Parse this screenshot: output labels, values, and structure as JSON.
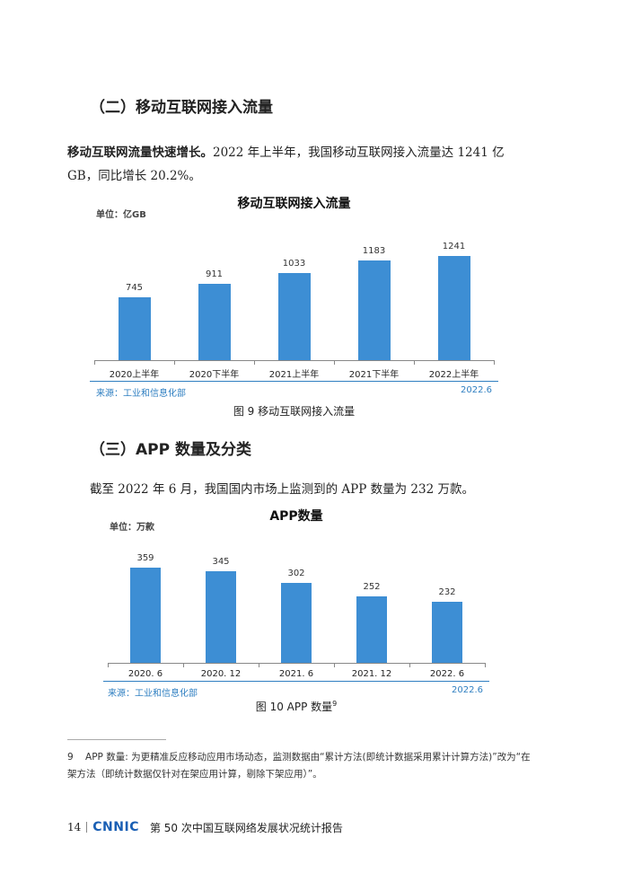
{
  "section1": {
    "heading": "（二）移动互联网接入流量",
    "para_bold": "移动互联网流量快速增长。",
    "para_rest": "2022 年上半年，我国移动互联网接入流量达 1241 亿 GB，同比增长 20.2%。"
  },
  "chart1": {
    "title": "移动互联网接入流量",
    "unit": "单位：亿GB",
    "source": "来源：工业和信息化部",
    "date": "2022.6",
    "caption": "图 9  移动互联网接入流量"
  },
  "section2": {
    "heading": "（三）APP 数量及分类",
    "para": "截至 2022 年 6 月，我国国内市场上监测到的 APP 数量为 232 万款。"
  },
  "chart2": {
    "title": "APP数量",
    "unit": "单位：万款",
    "source": "来源：工业和信息化部",
    "date": "2022.6",
    "caption": "图 10  APP 数量",
    "caption_sup": "9"
  },
  "chart_data": [
    {
      "type": "bar",
      "title": "移动互联网接入流量",
      "ylabel": "单位：亿GB",
      "categories": [
        "2020上半年",
        "2020下半年",
        "2021上半年",
        "2021下半年",
        "2022上半年"
      ],
      "values": [
        745,
        911,
        1033,
        1183,
        1241
      ],
      "ylim": [
        0,
        1400
      ],
      "grid": false,
      "color": "#3d8ed4"
    },
    {
      "type": "bar",
      "title": "APP数量",
      "ylabel": "单位：万款",
      "categories": [
        "2020. 6",
        "2020. 12",
        "2021. 6",
        "2021. 12",
        "2022. 6"
      ],
      "values": [
        359,
        345,
        302,
        252,
        232
      ],
      "ylim": [
        0,
        400
      ],
      "grid": false,
      "color": "#3d8ed4"
    }
  ],
  "footnote": {
    "number": "9",
    "text_line1": "APP 数量: 为更精准反应移动应用市场动态，监测数据由“累计方法(即统计数据采用累计计算方法)”改为“在",
    "text_line2": "架方法（即统计数据仅针对在架应用计算，剔除下架应用）”。"
  },
  "footer": {
    "page_number": "14",
    "logo": "CNNIC",
    "title": "第 50 次中国互联网络发展状况统计报告"
  },
  "colors": {
    "bar": "#3d8ed4",
    "accent": "#2f7fc1"
  }
}
